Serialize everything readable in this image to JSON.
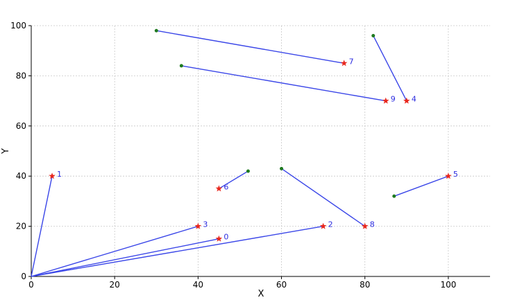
{
  "chart_data": {
    "type": "scatter",
    "title": "",
    "xlabel": "X",
    "ylabel": "Y",
    "xlim": [
      0,
      110
    ],
    "ylim": [
      0,
      100
    ],
    "xticks": [
      0,
      20,
      40,
      60,
      80,
      100
    ],
    "yticks": [
      0,
      20,
      40,
      60,
      80,
      100
    ],
    "grid": true,
    "grid_style": "dotted",
    "colors": {
      "segment": "#3a46e8",
      "star": "#e8281e",
      "dot": "#1f7a1f",
      "label": "#2a2ae0",
      "grid": "#c8c8c8"
    },
    "segments": [
      {
        "from": [
          0,
          0
        ],
        "to": [
          45,
          15
        ]
      },
      {
        "from": [
          0,
          0
        ],
        "to": [
          5,
          40
        ]
      },
      {
        "from": [
          0,
          0
        ],
        "to": [
          70,
          20
        ]
      },
      {
        "from": [
          0,
          0
        ],
        "to": [
          40,
          20
        ]
      },
      {
        "from": [
          82,
          96
        ],
        "to": [
          90,
          70
        ]
      },
      {
        "from": [
          87,
          32
        ],
        "to": [
          100,
          40
        ]
      },
      {
        "from": [
          52,
          42
        ],
        "to": [
          45,
          35
        ]
      },
      {
        "from": [
          30,
          98
        ],
        "to": [
          75,
          85
        ]
      },
      {
        "from": [
          60,
          43
        ],
        "to": [
          80,
          20
        ]
      },
      {
        "from": [
          36,
          84
        ],
        "to": [
          85,
          70
        ]
      }
    ],
    "dots": [
      [
        82,
        96
      ],
      [
        87,
        32
      ],
      [
        52,
        42
      ],
      [
        30,
        98
      ],
      [
        60,
        43
      ],
      [
        36,
        84
      ]
    ],
    "stars": [
      {
        "label": "0",
        "x": 45,
        "y": 15
      },
      {
        "label": "1",
        "x": 5,
        "y": 40
      },
      {
        "label": "2",
        "x": 70,
        "y": 20
      },
      {
        "label": "3",
        "x": 40,
        "y": 20
      },
      {
        "label": "4",
        "x": 90,
        "y": 70
      },
      {
        "label": "5",
        "x": 100,
        "y": 40
      },
      {
        "label": "6",
        "x": 45,
        "y": 35
      },
      {
        "label": "7",
        "x": 75,
        "y": 85
      },
      {
        "label": "8",
        "x": 80,
        "y": 20
      },
      {
        "label": "9",
        "x": 85,
        "y": 70
      }
    ]
  }
}
